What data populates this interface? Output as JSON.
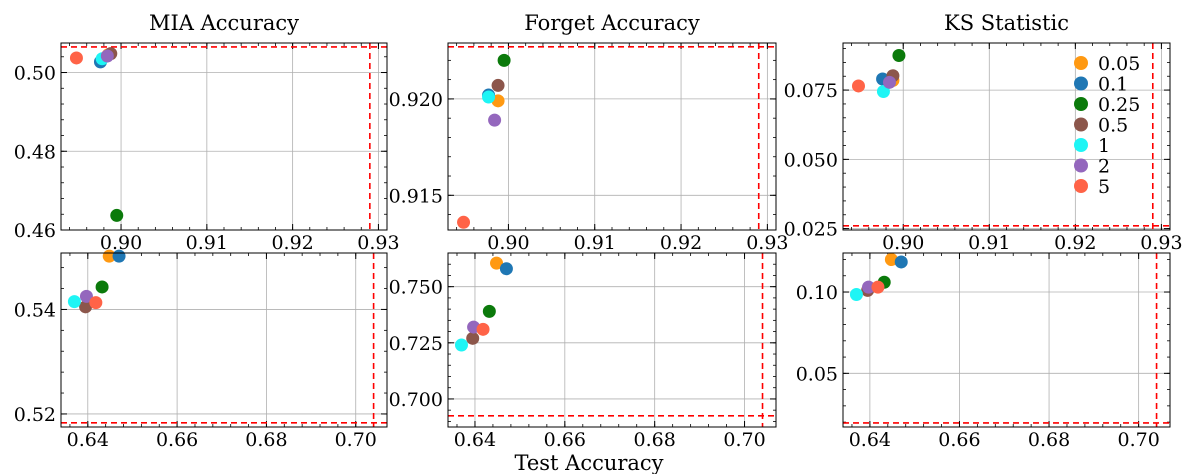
{
  "figure": {
    "xlabel": "Test Accuracy"
  },
  "legend": {
    "entries": [
      {
        "label": "0.05",
        "color": "#ff9912"
      },
      {
        "label": "0.1",
        "color": "#1f77b4"
      },
      {
        "label": "0.25",
        "color": "#0b7a0b"
      },
      {
        "label": "0.5",
        "color": "#8c564b"
      },
      {
        "label": "1",
        "color": "#1ef5f5"
      },
      {
        "label": "2",
        "color": "#9467bd"
      },
      {
        "label": "5",
        "color": "#ff6347"
      }
    ]
  },
  "chart_data": [
    {
      "type": "scatter",
      "title": "MIA Accuracy",
      "xlim": [
        0.893,
        0.931
      ],
      "ylim": [
        0.46,
        0.5075
      ],
      "xticks": [
        0.9,
        0.91,
        0.92,
        0.93
      ],
      "xtick_labels": [
        "0.90",
        "0.91",
        "0.92",
        "0.93"
      ],
      "yticks": [
        0.46,
        0.48,
        0.5
      ],
      "ytick_labels": [
        "0.46",
        "0.48",
        "0.50"
      ],
      "ref_x": 0.929,
      "ref_y": 0.5065,
      "series": [
        {
          "name": "0.05",
          "x": 0.8985,
          "y": 0.5045
        },
        {
          "name": "0.1",
          "x": 0.8976,
          "y": 0.5027
        },
        {
          "name": "0.25",
          "x": 0.8995,
          "y": 0.4637
        },
        {
          "name": "0.5",
          "x": 0.8988,
          "y": 0.5048
        },
        {
          "name": "1",
          "x": 0.8978,
          "y": 0.5035
        },
        {
          "name": "2",
          "x": 0.8984,
          "y": 0.5042
        },
        {
          "name": "5",
          "x": 0.8948,
          "y": 0.5037
        }
      ]
    },
    {
      "type": "scatter",
      "title": "Forget Accuracy",
      "xlim": [
        0.893,
        0.931
      ],
      "ylim": [
        0.9132,
        0.9229
      ],
      "xticks": [
        0.9,
        0.91,
        0.92,
        0.93
      ],
      "xtick_labels": [
        "0.90",
        "0.91",
        "0.92",
        "0.93"
      ],
      "yticks": [
        0.915,
        0.92
      ],
      "ytick_labels": [
        "0.915",
        "0.920"
      ],
      "ref_x": 0.929,
      "ref_y": 0.9227,
      "series": [
        {
          "name": "0.05",
          "x": 0.8988,
          "y": 0.9199
        },
        {
          "name": "0.1",
          "x": 0.8977,
          "y": 0.9202
        },
        {
          "name": "0.25",
          "x": 0.8995,
          "y": 0.922
        },
        {
          "name": "0.5",
          "x": 0.8988,
          "y": 0.9207
        },
        {
          "name": "1",
          "x": 0.8977,
          "y": 0.9201
        },
        {
          "name": "2",
          "x": 0.8984,
          "y": 0.9189
        },
        {
          "name": "5",
          "x": 0.8948,
          "y": 0.9136
        }
      ]
    },
    {
      "type": "scatter",
      "title": "KS Statistic",
      "xlim": [
        0.893,
        0.931
      ],
      "ylim": [
        0.0245,
        0.092
      ],
      "xticks": [
        0.9,
        0.91,
        0.92,
        0.93
      ],
      "xtick_labels": [
        "0.90",
        "0.91",
        "0.92",
        "0.93"
      ],
      "yticks": [
        0.025,
        0.05,
        0.075
      ],
      "ytick_labels": [
        "0.025",
        "0.050",
        "0.075"
      ],
      "ref_x": 0.929,
      "ref_y": 0.026,
      "series": [
        {
          "name": "0.05",
          "x": 0.8988,
          "y": 0.0785
        },
        {
          "name": "0.1",
          "x": 0.8976,
          "y": 0.079
        },
        {
          "name": "0.25",
          "x": 0.8995,
          "y": 0.0875
        },
        {
          "name": "0.5",
          "x": 0.8988,
          "y": 0.0802
        },
        {
          "name": "1",
          "x": 0.8977,
          "y": 0.0745
        },
        {
          "name": "2",
          "x": 0.8984,
          "y": 0.0778
        },
        {
          "name": "5",
          "x": 0.8948,
          "y": 0.0765
        }
      ]
    },
    {
      "type": "scatter",
      "title": "",
      "xlim": [
        0.634,
        0.707
      ],
      "ylim": [
        0.5175,
        0.5508
      ],
      "xticks": [
        0.64,
        0.66,
        0.68,
        0.7
      ],
      "xtick_labels": [
        "0.64",
        "0.66",
        "0.68",
        "0.70"
      ],
      "yticks": [
        0.52,
        0.54
      ],
      "ytick_labels": [
        "0.52",
        "0.54"
      ],
      "ref_x": 0.704,
      "ref_y": 0.5183,
      "series": [
        {
          "name": "0.05",
          "x": 0.6448,
          "y": 0.5502
        },
        {
          "name": "0.1",
          "x": 0.647,
          "y": 0.5502
        },
        {
          "name": "0.25",
          "x": 0.6432,
          "y": 0.5443
        },
        {
          "name": "0.5",
          "x": 0.6395,
          "y": 0.5405
        },
        {
          "name": "1",
          "x": 0.637,
          "y": 0.5415
        },
        {
          "name": "2",
          "x": 0.6397,
          "y": 0.5425
        },
        {
          "name": "5",
          "x": 0.6418,
          "y": 0.5413
        }
      ]
    },
    {
      "type": "scatter",
      "title": "",
      "xlim": [
        0.634,
        0.707
      ],
      "ylim": [
        0.6875,
        0.765
      ],
      "xticks": [
        0.64,
        0.66,
        0.68,
        0.7
      ],
      "xtick_labels": [
        "0.64",
        "0.66",
        "0.68",
        "0.70"
      ],
      "yticks": [
        0.7,
        0.725,
        0.75
      ],
      "ytick_labels": [
        "0.700",
        "0.725",
        "0.750"
      ],
      "ref_x": 0.704,
      "ref_y": 0.6925,
      "series": [
        {
          "name": "0.05",
          "x": 0.6448,
          "y": 0.7605
        },
        {
          "name": "0.1",
          "x": 0.647,
          "y": 0.758
        },
        {
          "name": "0.25",
          "x": 0.6432,
          "y": 0.739
        },
        {
          "name": "0.5",
          "x": 0.6395,
          "y": 0.727
        },
        {
          "name": "1",
          "x": 0.637,
          "y": 0.724
        },
        {
          "name": "2",
          "x": 0.6397,
          "y": 0.732
        },
        {
          "name": "5",
          "x": 0.6418,
          "y": 0.731
        }
      ]
    },
    {
      "type": "scatter",
      "title": "",
      "xlim": [
        0.634,
        0.707
      ],
      "ylim": [
        0.017,
        0.124
      ],
      "xticks": [
        0.64,
        0.66,
        0.68,
        0.7
      ],
      "xtick_labels": [
        "0.64",
        "0.66",
        "0.68",
        "0.70"
      ],
      "yticks": [
        0.05,
        0.1
      ],
      "ytick_labels": [
        "0.05",
        "0.10"
      ],
      "ref_x": 0.704,
      "ref_y": 0.0195,
      "series": [
        {
          "name": "0.05",
          "x": 0.6448,
          "y": 0.12
        },
        {
          "name": "0.1",
          "x": 0.647,
          "y": 0.1185
        },
        {
          "name": "0.25",
          "x": 0.6432,
          "y": 0.106
        },
        {
          "name": "0.5",
          "x": 0.6395,
          "y": 0.101
        },
        {
          "name": "1",
          "x": 0.637,
          "y": 0.0985
        },
        {
          "name": "2",
          "x": 0.6397,
          "y": 0.103
        },
        {
          "name": "5",
          "x": 0.6418,
          "y": 0.103
        }
      ]
    }
  ]
}
